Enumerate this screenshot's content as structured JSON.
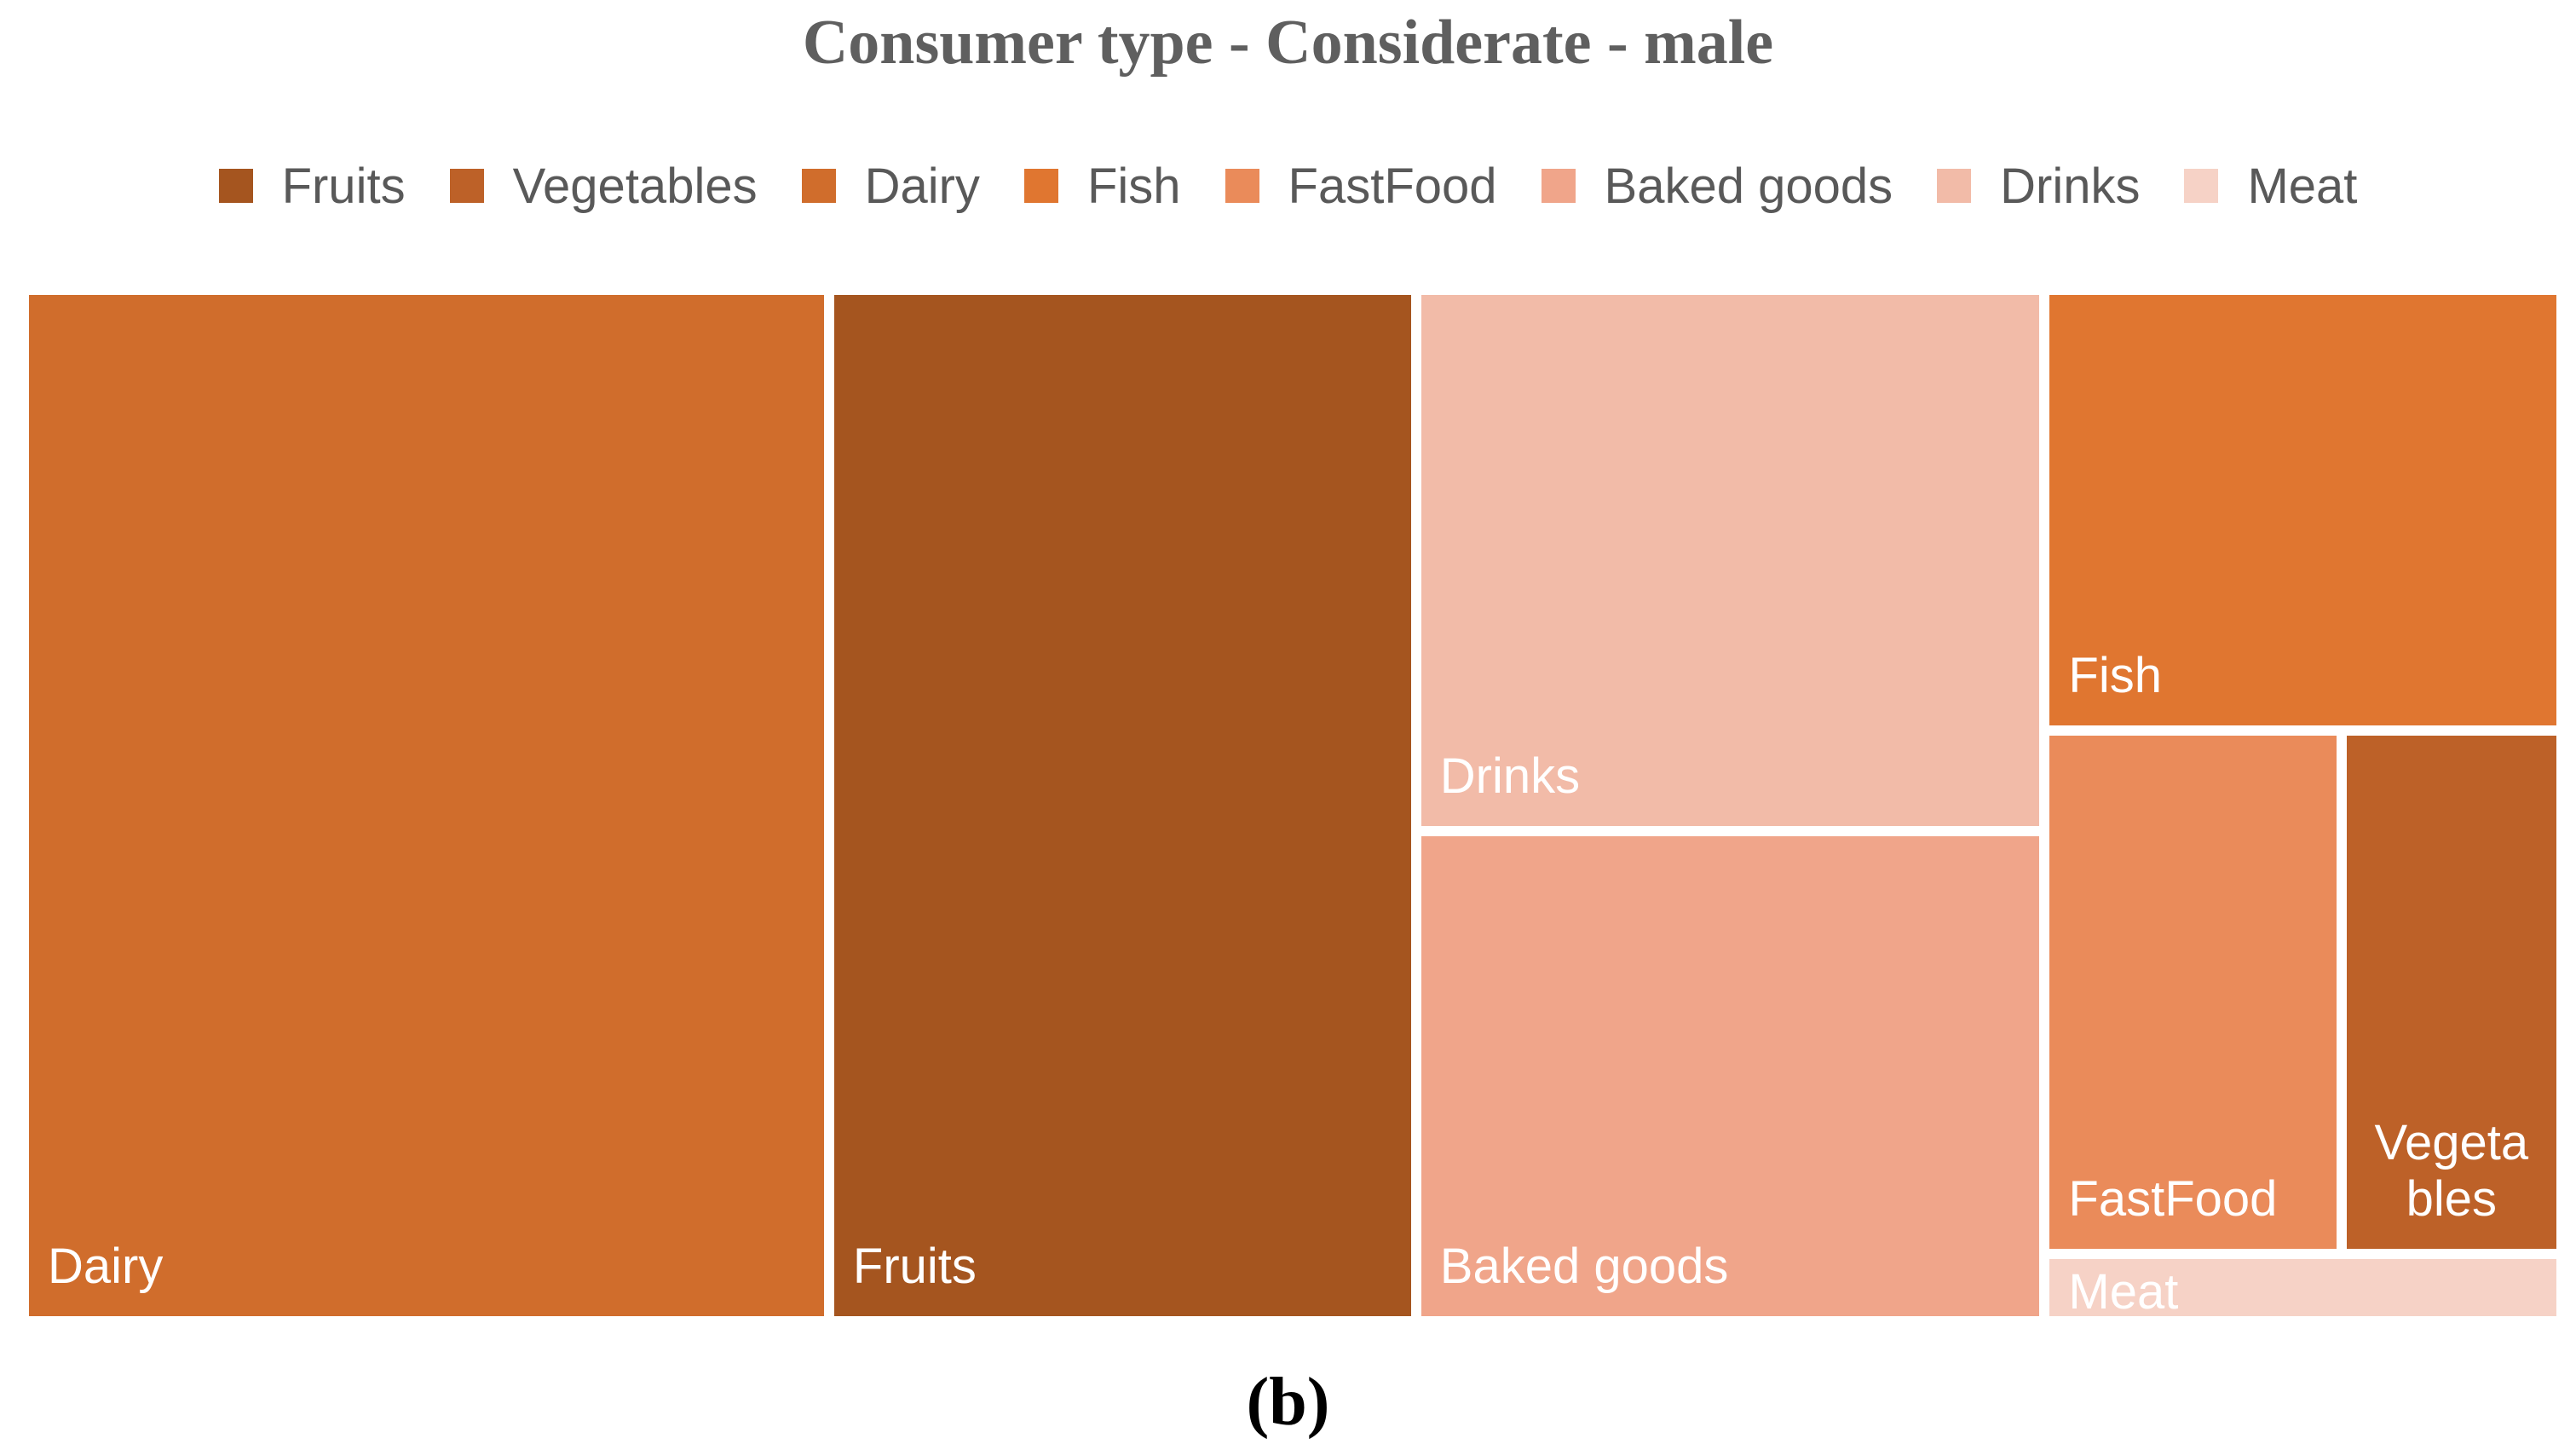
{
  "chart_data": {
    "type": "treemap",
    "title": "Consumer type - Considerate - male",
    "legend": [
      {
        "name": "Fruits",
        "color": "#a5551f"
      },
      {
        "name": "Vegetables",
        "color": "#bd6128"
      },
      {
        "name": "Dairy",
        "color": "#d06d2c"
      },
      {
        "name": "Fish",
        "color": "#e07630"
      },
      {
        "name": "FastFood",
        "color": "#ea8b5a"
      },
      {
        "name": "Baked goods",
        "color": "#f0a58a"
      },
      {
        "name": "Drinks",
        "color": "#f2bba8"
      },
      {
        "name": "Meat",
        "color": "#f6d2c6"
      }
    ],
    "values": [
      {
        "name": "Dairy",
        "label": "Dairy",
        "value": 31.0,
        "color": "#d06d2c"
      },
      {
        "name": "Fruits",
        "label": "Fruits",
        "value": 22.6,
        "color": "#a5551f"
      },
      {
        "name": "Drinks",
        "label": "Drinks",
        "value": 12.7,
        "color": "#f2bba8"
      },
      {
        "name": "Baked goods",
        "label": "Baked goods",
        "value": 11.5,
        "color": "#f0a58a"
      },
      {
        "name": "Fish",
        "label": "Fish",
        "value": 8.5,
        "color": "#e07630"
      },
      {
        "name": "FastFood",
        "label": "FastFood",
        "value": 5.8,
        "color": "#ea8b5a"
      },
      {
        "name": "Vegetables",
        "label": "Vegeta\nbles",
        "value": 4.3,
        "color": "#bd6128"
      },
      {
        "name": "Meat",
        "label": "Meat",
        "value": 1.3,
        "color": "#f6d2c6"
      }
    ]
  },
  "subfigure_label": "(b)"
}
